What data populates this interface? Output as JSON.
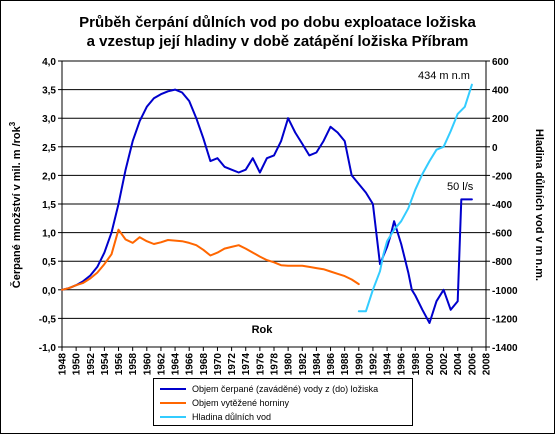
{
  "chart_data": {
    "type": "line",
    "title_line1": "Průběh čerpání důlních vod po dobu exploatace ložiska",
    "title_line2": "a vzestup její hladiny v době zatápění ložiska Příbram",
    "xlabel": "Rok",
    "ylabel_left": "Čerpané množství v mil. m  /rok",
    "ylabel_left_sup": "3",
    "ylabel_right": "Hladina důlních vod v m n.m.",
    "x_ticks": [
      1948,
      1950,
      1952,
      1954,
      1956,
      1958,
      1960,
      1962,
      1964,
      1966,
      1968,
      1970,
      1972,
      1974,
      1976,
      1978,
      1980,
      1982,
      1984,
      1986,
      1988,
      1990,
      1992,
      1994,
      1996,
      1998,
      2000,
      2002,
      2004,
      2006,
      2008
    ],
    "xlim": [
      1948,
      2008
    ],
    "ylim_left": [
      -1.0,
      4.0
    ],
    "y_left_ticks": [
      "-1,0",
      "-0,5",
      "0,0",
      "0,5",
      "1,0",
      "1,5",
      "2,0",
      "2,5",
      "3,0",
      "3,5",
      "4,0"
    ],
    "ylim_right": [
      -1400,
      600
    ],
    "y_right_ticks": [
      "-1400",
      "-1200",
      "-1000",
      "-800",
      "-600",
      "-400",
      "-200",
      "0",
      "200",
      "400",
      "600"
    ],
    "annotations": [
      {
        "text": "434 m n.m",
        "x": 2006,
        "y_right": 434
      },
      {
        "text": "50 l/s",
        "x": 2006,
        "y_left": 1.58
      }
    ],
    "colors": {
      "pumped": "#0000cc",
      "ore": "#ff6600",
      "level": "#33ccff"
    },
    "series": [
      {
        "name": "Objem čerpané (zaváděné) vody z (do) ložiska",
        "axis": "left",
        "x": [
          1948,
          1949,
          1950,
          1951,
          1952,
          1953,
          1954,
          1955,
          1956,
          1957,
          1958,
          1959,
          1960,
          1961,
          1962,
          1963,
          1964,
          1965,
          1966,
          1967,
          1968,
          1969,
          1970,
          1971,
          1972,
          1973,
          1974,
          1975,
          1976,
          1977,
          1978,
          1979,
          1980,
          1981,
          1982,
          1983,
          1984,
          1985,
          1986,
          1987,
          1988,
          1989,
          1990,
          1991,
          1992,
          1993,
          1994,
          1994.5,
          1995,
          1996,
          1997,
          1997.5,
          1998,
          1999,
          2000,
          2001,
          2002,
          2003,
          2004,
          2004.5,
          2005,
          2006
        ],
        "y": [
          0.0,
          0.03,
          0.08,
          0.15,
          0.25,
          0.4,
          0.65,
          1.0,
          1.5,
          2.1,
          2.6,
          2.95,
          3.2,
          3.35,
          3.42,
          3.47,
          3.5,
          3.45,
          3.3,
          3.0,
          2.65,
          2.25,
          2.3,
          2.15,
          2.1,
          2.05,
          2.1,
          2.3,
          2.05,
          2.3,
          2.35,
          2.6,
          3.0,
          2.75,
          2.55,
          2.35,
          2.4,
          2.6,
          2.85,
          2.75,
          2.6,
          2.0,
          1.85,
          1.7,
          1.5,
          0.45,
          0.75,
          0.95,
          1.2,
          0.8,
          0.3,
          0.0,
          -0.1,
          -0.35,
          -0.58,
          -0.2,
          0.0,
          -0.35,
          -0.2,
          1.58,
          1.58,
          1.58
        ]
      },
      {
        "name": "Objem vytěžené horniny",
        "axis": "left",
        "x": [
          1948,
          1949,
          1950,
          1951,
          1952,
          1953,
          1954,
          1955,
          1956,
          1957,
          1958,
          1959,
          1960,
          1961,
          1962,
          1963,
          1964,
          1965,
          1966,
          1967,
          1968,
          1969,
          1970,
          1971,
          1972,
          1973,
          1974,
          1975,
          1976,
          1977,
          1978,
          1979,
          1980,
          1981,
          1982,
          1983,
          1984,
          1985,
          1986,
          1987,
          1988,
          1989,
          1990
        ],
        "y": [
          0.0,
          0.03,
          0.08,
          0.12,
          0.2,
          0.3,
          0.45,
          0.62,
          1.05,
          0.88,
          0.82,
          0.92,
          0.85,
          0.8,
          0.83,
          0.87,
          0.86,
          0.85,
          0.82,
          0.78,
          0.7,
          0.6,
          0.65,
          0.72,
          0.75,
          0.78,
          0.72,
          0.65,
          0.58,
          0.52,
          0.48,
          0.43,
          0.42,
          0.42,
          0.42,
          0.4,
          0.38,
          0.36,
          0.32,
          0.28,
          0.24,
          0.18,
          0.1
        ]
      },
      {
        "name": "Hladina důlních vod",
        "axis": "right",
        "x": [
          1990,
          1991,
          1992,
          1993,
          1993.5,
          1994,
          1995,
          1996,
          1997,
          1998,
          1999,
          2000,
          2001,
          2002,
          2003,
          2004,
          2005,
          2006
        ],
        "y": [
          -1150,
          -1150,
          -1000,
          -870,
          -750,
          -660,
          -580,
          -520,
          -430,
          -300,
          -190,
          -100,
          -20,
          0,
          110,
          230,
          280,
          434
        ]
      }
    ]
  }
}
